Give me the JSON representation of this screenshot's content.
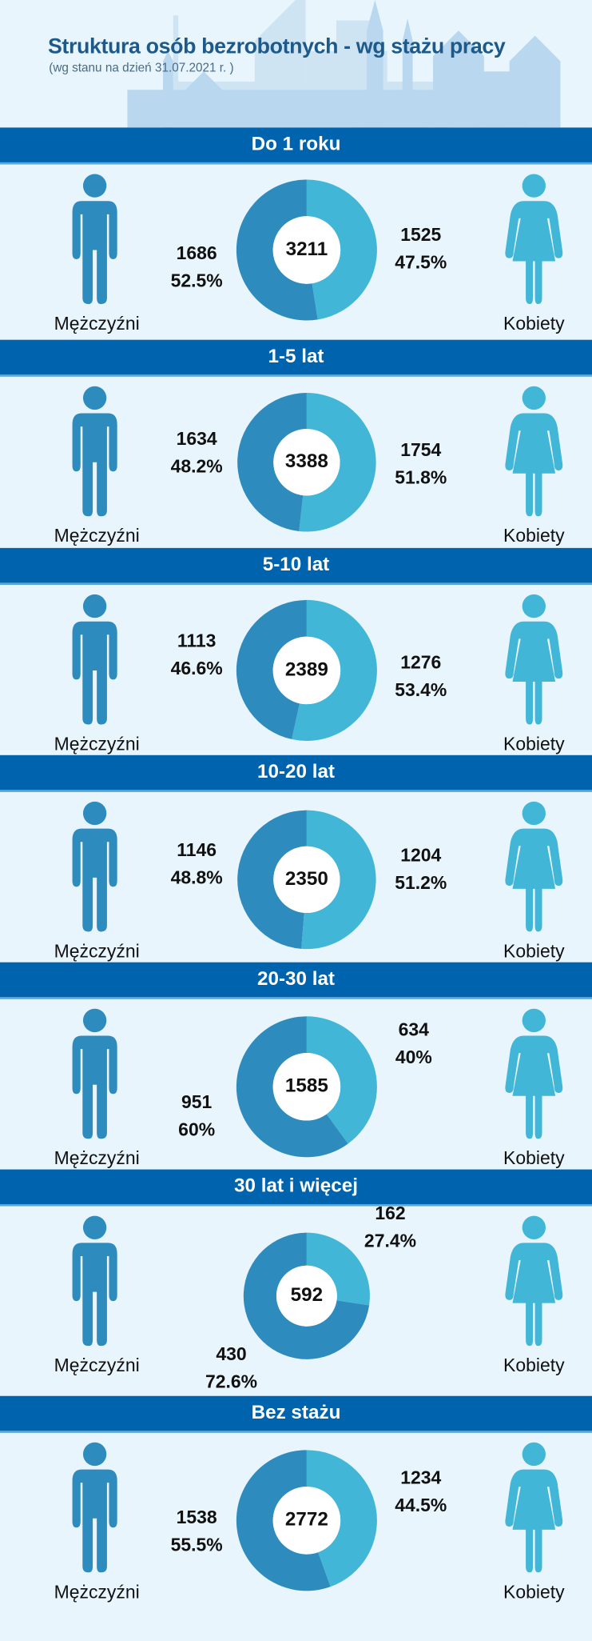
{
  "header": {
    "title": "Struktura osób bezrobotnych - wg stażu pracy",
    "subtitle": "(wg stanu na dzień 31.07.2021 r. )"
  },
  "labels": {
    "men": "Mężczyźni",
    "women": "Kobiety"
  },
  "colors": {
    "men": "#2e8bbd",
    "women": "#42b6d6",
    "banner": "#0063ae",
    "background": "#e9f5fd"
  },
  "icons": {
    "men": "man-figure-icon",
    "women": "woman-figure-icon"
  },
  "chart_data": [
    {
      "type": "pie",
      "title": "Do 1 roku",
      "categories": [
        "Mężczyźni",
        "Kobiety"
      ],
      "values": [
        1686,
        1525
      ],
      "percent_labels": [
        "52.5%",
        "47.5%"
      ],
      "total": "3211"
    },
    {
      "type": "pie",
      "title": "1-5 lat",
      "categories": [
        "Mężczyźni",
        "Kobiety"
      ],
      "values": [
        1634,
        1754
      ],
      "percent_labels": [
        "48.2%",
        "51.8%"
      ],
      "total": "3388"
    },
    {
      "type": "pie",
      "title": "5-10 lat",
      "categories": [
        "Mężczyźni",
        "Kobiety"
      ],
      "values": [
        1113,
        1276
      ],
      "percent_labels": [
        "46.6%",
        "53.4%"
      ],
      "total": "2389"
    },
    {
      "type": "pie",
      "title": "10-20 lat",
      "categories": [
        "Mężczyźni",
        "Kobiety"
      ],
      "values": [
        1146,
        1204
      ],
      "percent_labels": [
        "48.8%",
        "51.2%"
      ],
      "total": "2350"
    },
    {
      "type": "pie",
      "title": "20-30 lat",
      "categories": [
        "Mężczyźni",
        "Kobiety"
      ],
      "values": [
        951,
        634
      ],
      "percent_labels": [
        "60%",
        "40%"
      ],
      "total": "1585"
    },
    {
      "type": "pie",
      "title": "30 lat i więcej",
      "categories": [
        "Mężczyźni",
        "Kobiety"
      ],
      "values": [
        430,
        162
      ],
      "percent_labels": [
        "72.6%",
        "27.4%"
      ],
      "total": "592"
    },
    {
      "type": "pie",
      "title": "Bez stażu",
      "categories": [
        "Mężczyźni",
        "Kobiety"
      ],
      "values": [
        1538,
        1234
      ],
      "percent_labels": [
        "55.5%",
        "44.5%"
      ],
      "total": "2772"
    }
  ]
}
